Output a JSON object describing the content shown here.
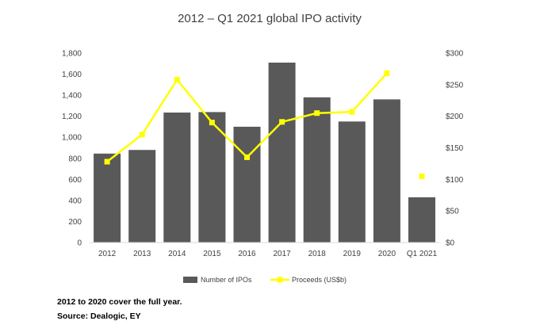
{
  "chart_data": {
    "type": "bar",
    "title": "2012 – Q1 2021 global IPO activity",
    "categories": [
      "2012",
      "2013",
      "2014",
      "2015",
      "2016",
      "2017",
      "2018",
      "2019",
      "2020",
      "Q1 2021"
    ],
    "series": [
      {
        "name": "Number of IPOs",
        "type": "bar",
        "axis": "left",
        "color": "#595959",
        "values": [
          845,
          880,
          1235,
          1240,
          1100,
          1710,
          1380,
          1150,
          1360,
          430
        ]
      },
      {
        "name": "Proceeds (US$b)",
        "type": "line",
        "axis": "right",
        "color": "#FFFF00",
        "values": [
          128,
          171,
          258,
          190,
          135,
          191,
          205,
          207,
          268,
          105
        ],
        "last_point_disconnected": true
      }
    ],
    "y_left": {
      "min": 0,
      "max": 1800,
      "ticks": [
        0,
        200,
        400,
        600,
        800,
        1000,
        1200,
        1400,
        1600,
        1800
      ],
      "tick_labels": [
        "0",
        "200",
        "400",
        "600",
        "800",
        "1,000",
        "1,200",
        "1,400",
        "1,600",
        "1,800"
      ]
    },
    "y_right": {
      "min": 0,
      "max": 300,
      "ticks": [
        0,
        50,
        100,
        150,
        200,
        250,
        300
      ],
      "tick_labels": [
        "$0",
        "$50",
        "$100",
        "$150",
        "$200",
        "$250",
        "$300"
      ]
    },
    "grid": false,
    "legend": {
      "position": "bottom",
      "entries": [
        "Number of IPOs",
        "Proceeds (US$b)"
      ]
    }
  },
  "notes": {
    "footnote": "2012 to 2020 cover the full year.",
    "source": "Source: Dealogic, EY"
  }
}
